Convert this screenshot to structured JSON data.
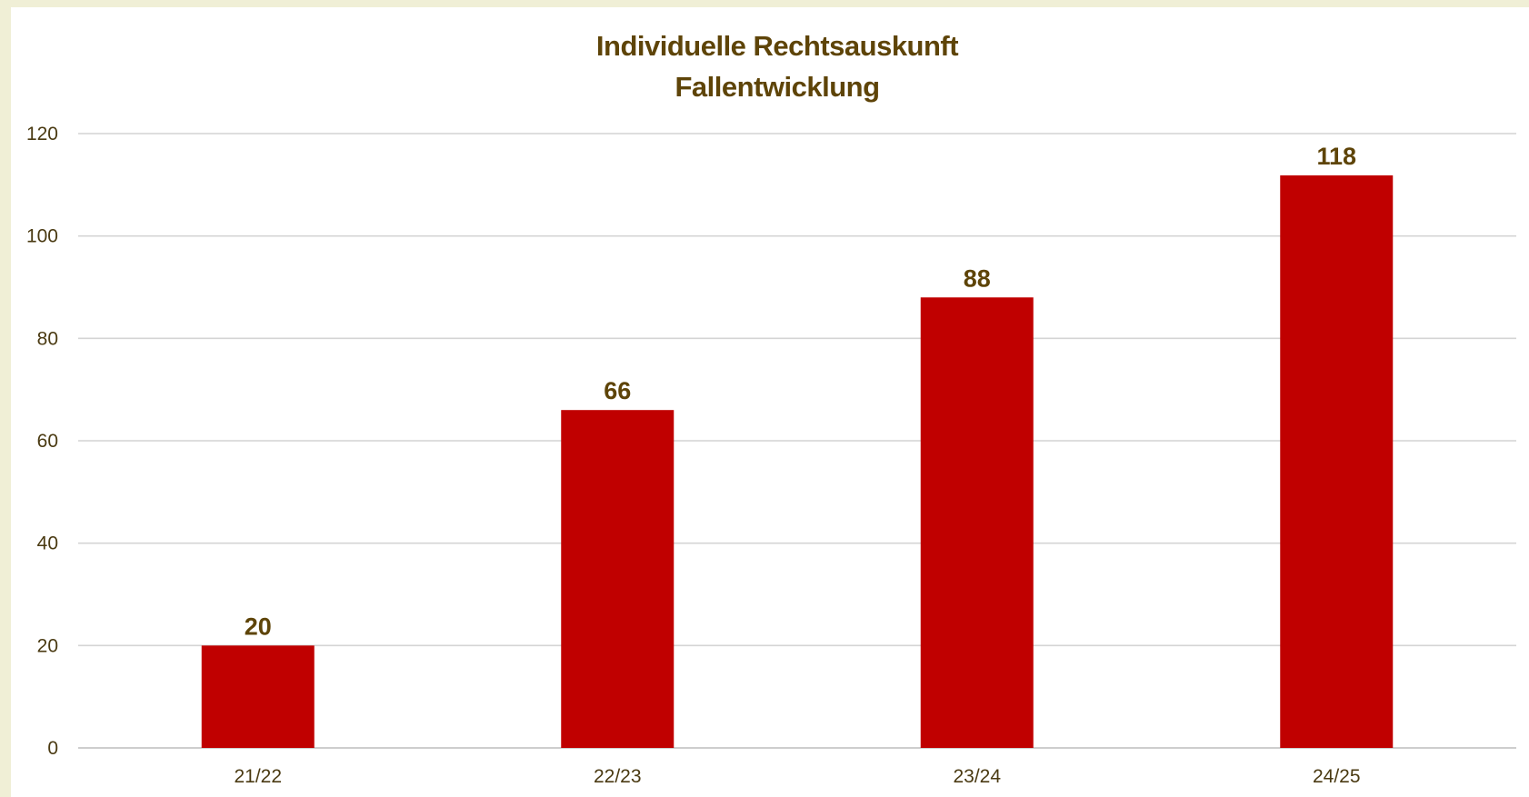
{
  "chart_data": {
    "type": "bar",
    "title": "Individuelle Rechtsauskunft",
    "subtitle": "Fallentwicklung",
    "categories": [
      "21/22",
      "22/23",
      "23/24",
      "24/25"
    ],
    "values": [
      20,
      66,
      88,
      118
    ],
    "data_labels": [
      "20",
      "66",
      "88",
      "118"
    ],
    "ylim": [
      0,
      120
    ],
    "yticks": [
      0,
      20,
      40,
      60,
      80,
      100,
      120
    ],
    "grid": true,
    "legend": "none",
    "colors": {
      "bar": "#c00000",
      "title": "#5e4408",
      "labels": "#5e4408",
      "background": "#f0efd6"
    }
  }
}
